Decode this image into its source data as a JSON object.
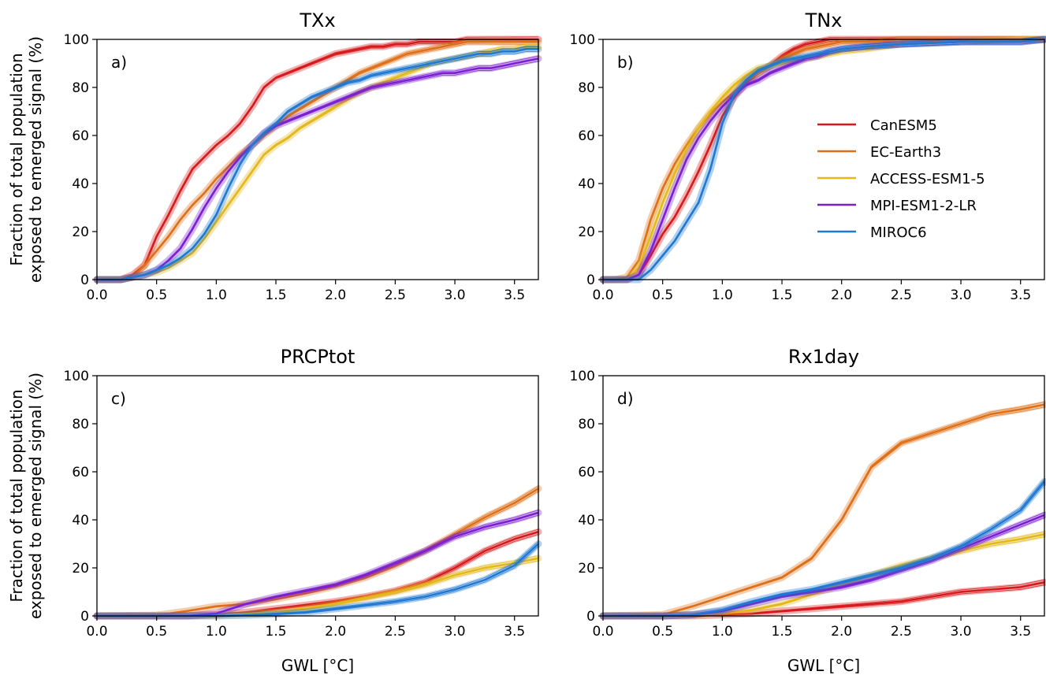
{
  "colors": {
    "CanESM5": "#d7191c",
    "EC-Earth3": "#de6f17",
    "ACCESS-ESM1-5": "#e3b81b",
    "MPI-ESM1-2-LR": "#7a1fd2",
    "MIROC6": "#1f78d1"
  },
  "legend": [
    "CanESM5",
    "EC-Earth3",
    "ACCESS-ESM1-5",
    "MPI-ESM1-2-LR",
    "MIROC6"
  ],
  "ylabel_line1": "Fraction of total population",
  "ylabel_line2": "exposed to emerged signal (%)",
  "xlabel": "GWL [°C]",
  "chart_data": [
    {
      "type": "line",
      "title": "TXx",
      "panel_label": "a)",
      "xlim": [
        0,
        3.7
      ],
      "ylim": [
        0,
        100
      ],
      "x": [
        0,
        0.1,
        0.2,
        0.3,
        0.4,
        0.5,
        0.6,
        0.7,
        0.8,
        0.9,
        1.0,
        1.1,
        1.2,
        1.3,
        1.4,
        1.5,
        1.6,
        1.7,
        1.8,
        1.9,
        2.0,
        2.1,
        2.2,
        2.3,
        2.4,
        2.5,
        2.6,
        2.7,
        2.8,
        2.9,
        3.0,
        3.1,
        3.2,
        3.3,
        3.4,
        3.5,
        3.6,
        3.7
      ],
      "series": [
        {
          "name": "CanESM5",
          "values": [
            0,
            0,
            0,
            2,
            6,
            18,
            27,
            37,
            46,
            51,
            56,
            60,
            65,
            72,
            80,
            84,
            86,
            88,
            90,
            92,
            94,
            95,
            96,
            97,
            97,
            98,
            98,
            99,
            99,
            99,
            99,
            100,
            100,
            100,
            100,
            100,
            100,
            100
          ]
        },
        {
          "name": "EC-Earth3",
          "values": [
            0,
            0,
            0,
            1,
            6,
            12,
            18,
            25,
            31,
            36,
            42,
            47,
            52,
            56,
            60,
            64,
            68,
            71,
            74,
            77,
            80,
            83,
            86,
            88,
            90,
            92,
            94,
            95,
            96,
            97,
            98,
            99,
            99,
            99,
            99,
            99,
            99,
            99
          ]
        },
        {
          "name": "ACCESS-ESM1-5",
          "values": [
            0,
            0,
            0,
            1,
            2,
            3,
            5,
            8,
            11,
            17,
            24,
            31,
            38,
            45,
            52,
            56,
            59,
            63,
            66,
            69,
            72,
            75,
            78,
            80,
            82,
            84,
            86,
            88,
            90,
            91,
            92,
            93,
            94,
            95,
            96,
            96,
            97,
            97
          ]
        },
        {
          "name": "MPI-ESM1-2-LR",
          "values": [
            0,
            0,
            0,
            1,
            2,
            4,
            8,
            13,
            21,
            30,
            38,
            45,
            51,
            56,
            61,
            64,
            66,
            68,
            70,
            72,
            74,
            76,
            78,
            80,
            81,
            82,
            83,
            84,
            85,
            86,
            86,
            87,
            88,
            88,
            89,
            90,
            91,
            92
          ]
        },
        {
          "name": "MIROC6",
          "values": [
            0,
            0,
            0,
            1,
            2,
            4,
            6,
            9,
            13,
            19,
            27,
            38,
            48,
            56,
            61,
            65,
            70,
            73,
            76,
            78,
            80,
            82,
            83,
            85,
            86,
            87,
            88,
            89,
            90,
            91,
            92,
            93,
            94,
            94,
            95,
            95,
            96,
            96
          ]
        }
      ]
    },
    {
      "type": "line",
      "title": "TNx",
      "panel_label": "b)",
      "xlim": [
        0,
        3.7
      ],
      "ylim": [
        0,
        100
      ],
      "x": [
        0,
        0.1,
        0.2,
        0.3,
        0.4,
        0.5,
        0.6,
        0.7,
        0.8,
        0.9,
        1.0,
        1.1,
        1.2,
        1.3,
        1.4,
        1.5,
        1.6,
        1.7,
        1.8,
        1.9,
        2.0,
        2.2,
        2.5,
        3.0,
        3.5,
        3.7
      ],
      "series": [
        {
          "name": "CanESM5",
          "values": [
            0,
            0,
            0,
            2,
            10,
            19,
            26,
            35,
            45,
            56,
            68,
            76,
            82,
            86,
            89,
            93,
            96,
            98,
            99,
            100,
            100,
            100,
            100,
            100,
            100,
            100
          ]
        },
        {
          "name": "EC-Earth3",
          "values": [
            0,
            0,
            1,
            8,
            25,
            38,
            48,
            56,
            63,
            69,
            74,
            78,
            83,
            86,
            89,
            92,
            94,
            96,
            97,
            98,
            99,
            99,
            100,
            100,
            100,
            100
          ]
        },
        {
          "name": "ACCESS-ESM1-5",
          "values": [
            0,
            0,
            0,
            5,
            18,
            32,
            44,
            54,
            63,
            70,
            76,
            81,
            85,
            88,
            89,
            90,
            91,
            92,
            93,
            94,
            95,
            96,
            98,
            99,
            100,
            100
          ]
        },
        {
          "name": "MPI-ESM1-2-LR",
          "values": [
            0,
            0,
            0,
            2,
            12,
            25,
            38,
            50,
            59,
            66,
            72,
            77,
            81,
            83,
            86,
            88,
            90,
            92,
            93,
            95,
            96,
            97,
            98,
            99,
            99,
            100
          ]
        },
        {
          "name": "MIROC6",
          "values": [
            0,
            0,
            0,
            0,
            4,
            10,
            16,
            24,
            32,
            46,
            65,
            77,
            83,
            87,
            89,
            91,
            92,
            93,
            94,
            95,
            96,
            97,
            98,
            99,
            99,
            100
          ]
        }
      ]
    },
    {
      "type": "line",
      "title": "PRCPtot",
      "panel_label": "c)",
      "xlim": [
        0,
        3.7
      ],
      "ylim": [
        0,
        100
      ],
      "x": [
        0,
        0.5,
        0.75,
        1.0,
        1.25,
        1.5,
        1.75,
        2.0,
        2.25,
        2.5,
        2.75,
        3.0,
        3.25,
        3.5,
        3.7
      ],
      "series": [
        {
          "name": "CanESM5",
          "values": [
            0,
            0,
            0,
            0.5,
            1.5,
            3,
            4.5,
            6,
            8,
            10.5,
            14,
            20,
            27,
            32,
            35
          ]
        },
        {
          "name": "EC-Earth3",
          "values": [
            0,
            0.3,
            2,
            4,
            5,
            7,
            9.5,
            12.5,
            16,
            21,
            27,
            34,
            41,
            47,
            53
          ]
        },
        {
          "name": "ACCESS-ESM1-5",
          "values": [
            0,
            0,
            0,
            0.3,
            0.8,
            1.5,
            3,
            5,
            7.5,
            10,
            13,
            17,
            20,
            22,
            24
          ]
        },
        {
          "name": "MPI-ESM1-2-LR",
          "values": [
            0,
            0,
            0,
            1,
            5,
            8,
            10.5,
            13,
            17,
            22,
            27,
            33,
            37,
            40,
            43
          ]
        },
        {
          "name": "MIROC6",
          "values": [
            0,
            0,
            0,
            0,
            0.3,
            0.8,
            1.5,
            3,
            4.5,
            6,
            8,
            11,
            15,
            21,
            30
          ]
        }
      ]
    },
    {
      "type": "line",
      "title": "Rx1day",
      "panel_label": "d)",
      "xlim": [
        0,
        3.7
      ],
      "ylim": [
        0,
        100
      ],
      "x": [
        0,
        0.5,
        0.75,
        1.0,
        1.25,
        1.5,
        1.75,
        2.0,
        2.25,
        2.5,
        2.75,
        3.0,
        3.25,
        3.5,
        3.7
      ],
      "series": [
        {
          "name": "CanESM5",
          "values": [
            0,
            0,
            0,
            0.5,
            1,
            2,
            3,
            4,
            5,
            6,
            8,
            10,
            11,
            12,
            14
          ]
        },
        {
          "name": "EC-Earth3",
          "values": [
            0,
            0.5,
            4,
            8,
            12,
            16,
            24,
            40,
            62,
            72,
            76,
            80,
            84,
            86,
            88
          ]
        },
        {
          "name": "ACCESS-ESM1-5",
          "values": [
            0,
            0,
            0.5,
            1,
            2.5,
            5,
            9,
            13,
            17,
            21,
            24,
            27,
            30,
            32,
            34
          ]
        },
        {
          "name": "MPI-ESM1-2-LR",
          "values": [
            0,
            0,
            0.5,
            2,
            5,
            8,
            10,
            12,
            15,
            19,
            23,
            28,
            33,
            38,
            42
          ]
        },
        {
          "name": "MIROC6",
          "values": [
            0,
            0,
            0.5,
            2.5,
            6,
            9,
            11,
            14,
            17,
            20,
            24,
            29,
            36,
            44,
            56
          ]
        }
      ]
    }
  ]
}
